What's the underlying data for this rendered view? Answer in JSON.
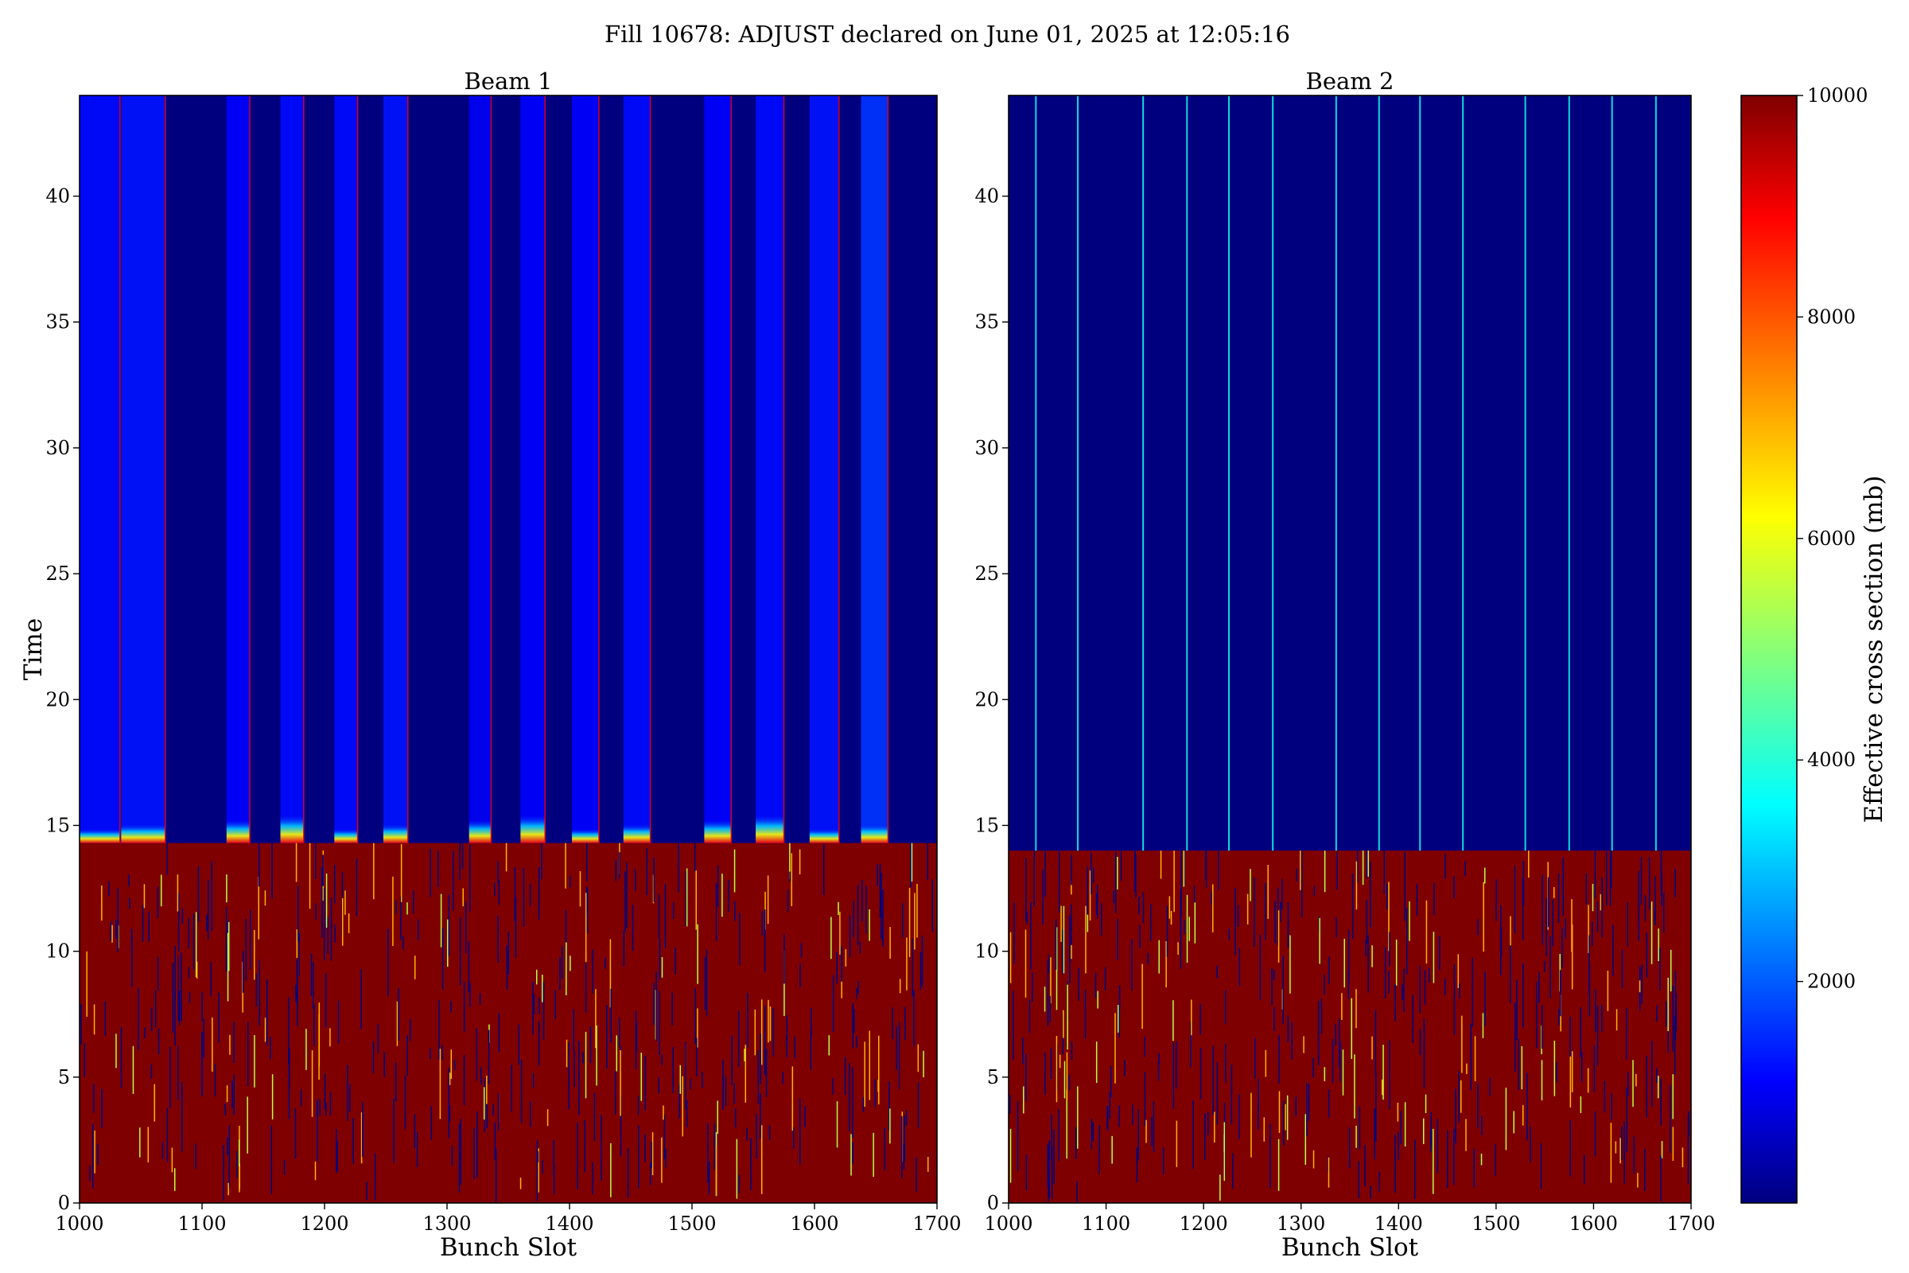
{
  "chart_data": {
    "type": "heatmap",
    "title": "Fill 10678: ADJUST declared on June 01, 2025 at 12:05:16",
    "colorbar": {
      "label": "Effective cross section (mb)",
      "range": [
        0,
        10000
      ],
      "ticks": [
        2000,
        4000,
        6000,
        8000,
        10000
      ],
      "colormap": [
        "#00007f",
        "#0000ff",
        "#00ffff",
        "#ffff00",
        "#ff0000",
        "#7f0000"
      ]
    },
    "panels": [
      {
        "title": "Beam 1",
        "xlabel": "Bunch Slot",
        "ylabel": "Time",
        "xlim": [
          1000,
          1700
        ],
        "ylim": [
          0,
          44
        ],
        "xticks": [
          1000,
          1100,
          1200,
          1300,
          1400,
          1500,
          1600,
          1700
        ],
        "yticks": [
          0,
          5,
          10,
          15,
          20,
          25,
          30,
          35,
          40
        ],
        "transition_time": 14.3,
        "low_value_regions": [
          {
            "x_start": 1000,
            "x_end": 1033,
            "value": 1200
          },
          {
            "x_start": 1034,
            "x_end": 1070,
            "value": 1300
          },
          {
            "x_start": 1120,
            "x_end": 1139,
            "value": 1100
          },
          {
            "x_start": 1164,
            "x_end": 1183,
            "value": 1200
          },
          {
            "x_start": 1208,
            "x_end": 1227,
            "value": 1200
          },
          {
            "x_start": 1248,
            "x_end": 1268,
            "value": 1300
          },
          {
            "x_start": 1318,
            "x_end": 1336,
            "value": 1000
          },
          {
            "x_start": 1360,
            "x_end": 1380,
            "value": 1100
          },
          {
            "x_start": 1402,
            "x_end": 1424,
            "value": 1100
          },
          {
            "x_start": 1444,
            "x_end": 1466,
            "value": 1200
          },
          {
            "x_start": 1510,
            "x_end": 1532,
            "value": 1100
          },
          {
            "x_start": 1552,
            "x_end": 1575,
            "value": 1200
          },
          {
            "x_start": 1596,
            "x_end": 1620,
            "value": 1300
          },
          {
            "x_start": 1638,
            "x_end": 1660,
            "value": 1600
          }
        ],
        "spike_slots": [
          1033,
          1070,
          1139,
          1183,
          1227,
          1268,
          1336,
          1380,
          1424,
          1466,
          1532,
          1575,
          1620,
          1660
        ]
      },
      {
        "title": "Beam 2",
        "xlabel": "Bunch Slot",
        "xlim": [
          1000,
          1700
        ],
        "ylim": [
          0,
          44
        ],
        "xticks": [
          1000,
          1100,
          1200,
          1300,
          1400,
          1500,
          1600,
          1700
        ],
        "yticks": [
          0,
          5,
          10,
          15,
          20,
          25,
          30,
          35,
          40
        ],
        "transition_time": 14.0,
        "low_value_regions": [],
        "spike_slots": [
          1028,
          1071,
          1138,
          1183,
          1226,
          1271,
          1336,
          1380,
          1422,
          1466,
          1530,
          1575,
          1619,
          1664
        ]
      }
    ]
  }
}
